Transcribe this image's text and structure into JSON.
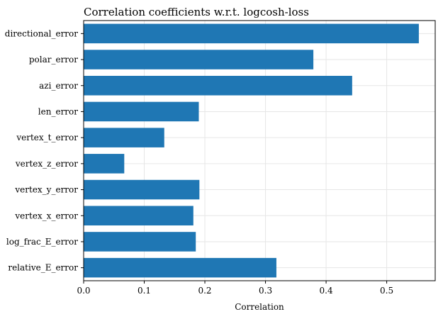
{
  "chart_data": {
    "type": "bar",
    "orientation": "horizontal",
    "title": "Correlation coefficients w.r.t. logcosh-loss",
    "xlabel": "Correlation",
    "ylabel": "",
    "categories": [
      "directional_error",
      "polar_error",
      "azi_error",
      "len_error",
      "vertex_t_error",
      "vertex_z_error",
      "vertex_y_error",
      "vertex_x_error",
      "log_frac_E_error",
      "relative_E_error"
    ],
    "values": [
      0.553,
      0.379,
      0.443,
      0.19,
      0.133,
      0.067,
      0.191,
      0.181,
      0.185,
      0.318
    ],
    "xlim": [
      0,
      0.58
    ],
    "xticks": [
      "0.0",
      "0.1",
      "0.2",
      "0.3",
      "0.4",
      "0.5"
    ],
    "xtick_values": [
      0,
      0.1,
      0.2,
      0.3,
      0.4,
      0.5
    ],
    "bar_color": "#1f77b4",
    "grid": true
  }
}
